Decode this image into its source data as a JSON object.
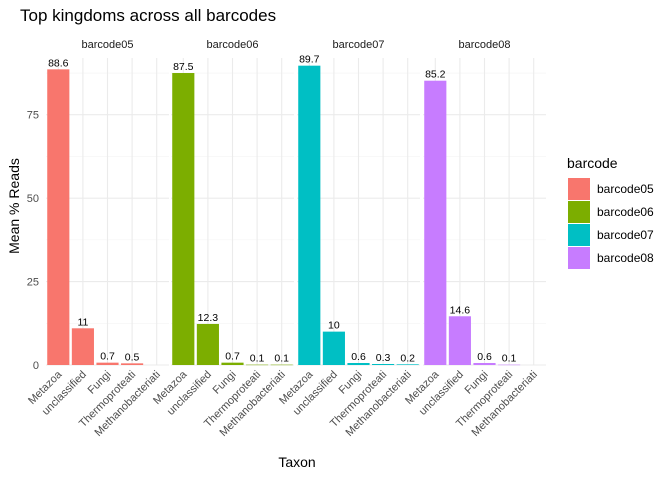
{
  "chart_data": {
    "type": "bar",
    "title": "Top kingdoms across all barcodes",
    "xlabel": "Taxon",
    "ylabel": "Mean % Reads",
    "ylim": [
      0,
      92
    ],
    "yticks": [
      0,
      25,
      50,
      75
    ],
    "grid": true,
    "legend": {
      "title": "barcode",
      "position": "right"
    },
    "categories": [
      "Metazoa",
      "unclassified",
      "Fungi",
      "Thermoproteati",
      "Methanobacteriati"
    ],
    "panels": [
      {
        "name": "barcode05",
        "color": "#F8766D",
        "values": [
          88.6,
          11,
          0.7,
          0.5,
          null
        ],
        "labels": [
          "88.6",
          "11",
          "0.7",
          "0.5",
          null
        ]
      },
      {
        "name": "barcode06",
        "color": "#7CAE00",
        "values": [
          87.5,
          12.3,
          0.7,
          0.1,
          0.1
        ],
        "labels": [
          "87.5",
          "12.3",
          "0.7",
          "0.1",
          "0.1"
        ]
      },
      {
        "name": "barcode07",
        "color": "#00BFC4",
        "values": [
          89.7,
          10,
          0.6,
          0.3,
          0.2
        ],
        "labels": [
          "89.7",
          "10",
          "0.6",
          "0.3",
          "0.2"
        ]
      },
      {
        "name": "barcode08",
        "color": "#C77CFF",
        "values": [
          85.2,
          14.6,
          0.6,
          0.1,
          null
        ],
        "labels": [
          "85.2",
          "14.6",
          "0.6",
          "0.1",
          null
        ]
      }
    ]
  }
}
